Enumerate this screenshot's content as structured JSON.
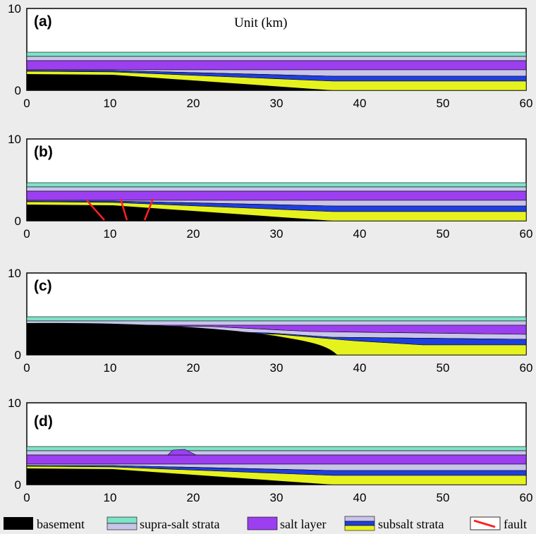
{
  "figure": {
    "unit_label": "Unit (km)",
    "x_ticks": [
      "0",
      "10",
      "20",
      "30",
      "40",
      "50",
      "60"
    ],
    "y_ticks": [
      "0",
      "10"
    ],
    "panels": [
      {
        "label": "(a)",
        "stage": "initial"
      },
      {
        "label": "(b)",
        "stage": "faulted"
      },
      {
        "label": "(c)",
        "stage": "uplifted-basement"
      },
      {
        "label": "(d)",
        "stage": "salt-dome"
      }
    ]
  },
  "legend": [
    {
      "label": "basement",
      "colors": [
        "#000000"
      ]
    },
    {
      "label": "supra-salt strata",
      "colors": [
        "#7fe3c8",
        "#c9c4ea"
      ]
    },
    {
      "label": "salt layer",
      "colors": [
        "#9b3ff0"
      ]
    },
    {
      "label": "subsalt strata",
      "colors": [
        "#c9c4ea",
        "#1f3fe0",
        "#e6f21e"
      ]
    },
    {
      "label": "fault",
      "colors": [
        "#ff2020"
      ]
    }
  ],
  "colors": {
    "basement": "#000000",
    "supra_salt_top": "#7fe3c8",
    "supra_salt_bottom": "#c9c4ea",
    "salt": "#9b3ff0",
    "subsalt_lavender": "#c9c4ea",
    "subsalt_blue": "#1f3fe0",
    "subsalt_yellow": "#e6f21e",
    "fault": "#ff2020"
  }
}
